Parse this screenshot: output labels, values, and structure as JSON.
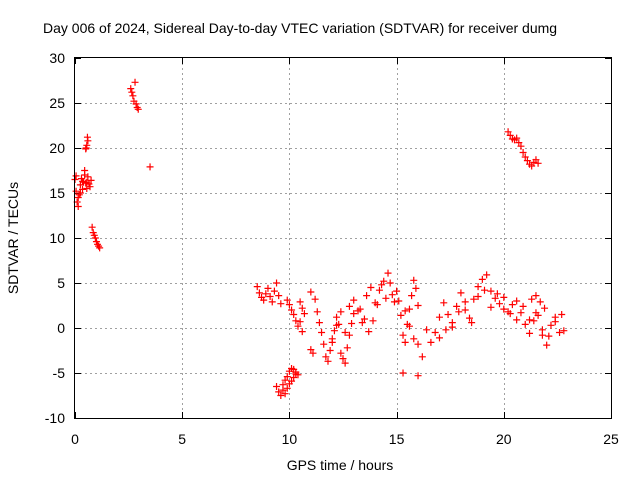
{
  "chart_data": {
    "type": "scatter",
    "title": "Day 006 of 2024, Sidereal Day-to-day VTEC variation (SDTVAR) for receiver dumg",
    "xlabel": "GPS time / hours",
    "ylabel": "SDTVAR / TECUs",
    "xlim": [
      0,
      25
    ],
    "ylim": [
      -10,
      30
    ],
    "xticks": [
      0,
      5,
      10,
      15,
      20,
      25
    ],
    "yticks": [
      -10,
      -5,
      0,
      5,
      10,
      15,
      20,
      25,
      30
    ],
    "xtick_labels": [
      "0",
      "5",
      "10",
      "15",
      "20",
      "25"
    ],
    "ytick_labels": [
      "-10",
      "-5",
      "0",
      "5",
      "10",
      "15",
      "20",
      "25",
      "30"
    ],
    "grid": true,
    "marker": "+",
    "color": "#ff0000",
    "series": [
      {
        "name": "SDTVAR",
        "x": [
          0.0,
          0.05,
          0.1,
          0.15,
          0.2,
          0.25,
          0.3,
          0.35,
          0.4,
          0.45,
          0.5,
          0.55,
          0.6,
          0.65,
          0.7,
          0.75,
          0.05,
          0.15,
          0.25,
          0.35,
          0.45,
          0.55,
          0.5,
          0.55,
          0.6,
          0.52,
          0.58,
          0.8,
          0.85,
          0.9,
          0.95,
          1.0,
          1.05,
          1.1,
          1.15,
          2.6,
          2.65,
          2.7,
          2.75,
          2.8,
          2.85,
          2.9,
          2.95,
          3.5,
          8.5,
          8.6,
          8.7,
          8.8,
          8.9,
          9.0,
          9.1,
          9.2,
          9.3,
          9.4,
          9.5,
          9.6,
          9.4,
          9.5,
          9.6,
          9.7,
          9.8,
          9.9,
          10.0,
          10.1,
          10.2,
          10.3,
          9.7,
          9.8,
          9.9,
          10.0,
          10.1,
          10.2,
          10.3,
          10.4,
          9.9,
          10.0,
          10.1,
          10.2,
          10.3,
          10.4,
          10.5,
          10.6,
          10.5,
          10.6,
          10.7,
          11.0,
          11.1,
          11.0,
          11.2,
          11.3,
          11.4,
          11.5,
          11.6,
          11.7,
          11.8,
          11.9,
          12.0,
          12.1,
          12.2,
          12.3,
          12.4,
          12.5,
          12.6,
          12.7,
          12.8,
          12.9,
          13.0,
          12.0,
          12.2,
          12.4,
          12.6,
          12.8,
          13.0,
          13.2,
          13.4,
          13.6,
          13.8,
          14.0,
          14.2,
          14.4,
          14.6,
          14.8,
          13.3,
          13.5,
          13.7,
          13.9,
          14.1,
          14.3,
          14.5,
          14.7,
          14.9,
          15.0,
          15.1,
          15.2,
          15.3,
          15.4,
          15.5,
          15.6,
          15.7,
          15.8,
          15.9,
          16.0,
          15.4,
          15.6,
          15.8,
          16.0,
          16.2,
          16.4,
          16.6,
          16.8,
          17.0,
          17.2,
          17.4,
          17.6,
          17.8,
          18.0,
          18.2,
          18.4,
          18.6,
          18.8,
          19.0,
          19.2,
          19.4,
          19.6,
          19.8,
          20.0,
          20.2,
          20.4,
          20.6,
          20.8,
          21.0,
          21.2,
          21.4,
          21.6,
          21.8,
          22.0,
          22.2,
          22.4,
          22.6,
          22.8,
          17.0,
          17.3,
          17.6,
          17.9,
          18.2,
          18.5,
          18.8,
          19.1,
          19.4,
          19.7,
          20.0,
          20.3,
          20.6,
          20.9,
          21.2,
          21.5,
          21.8,
          22.1,
          22.4,
          22.7,
          21.3,
          21.5,
          21.7,
          21.9,
          15.3,
          16.0,
          20.2,
          20.3,
          20.4,
          20.5,
          20.6,
          20.7,
          20.8,
          20.9,
          21.0,
          21.1,
          21.2,
          21.3,
          21.4,
          21.5,
          21.6
        ],
        "y": [
          16.5,
          15.2,
          14.0,
          13.5,
          14.8,
          15.9,
          16.6,
          15.4,
          16.2,
          17.0,
          16.1,
          15.5,
          16.8,
          16.0,
          15.7,
          16.4,
          16.9,
          14.5,
          15.0,
          16.3,
          17.5,
          16.2,
          19.9,
          20.3,
          20.8,
          20.0,
          21.2,
          11.2,
          10.6,
          10.3,
          10.0,
          9.6,
          9.3,
          9.1,
          8.9,
          26.6,
          26.2,
          25.8,
          25.2,
          27.3,
          24.9,
          24.5,
          24.3,
          17.9,
          4.6,
          3.9,
          3.4,
          3.1,
          3.8,
          4.4,
          3.5,
          2.9,
          4.1,
          5.0,
          3.6,
          2.7,
          -6.5,
          -7.1,
          -7.5,
          -6.9,
          -7.3,
          -6.7,
          -6.2,
          -5.9,
          -5.5,
          -5.1,
          -6.3,
          -5.8,
          -5.4,
          -4.8,
          -4.5,
          -4.6,
          -4.9,
          -5.2,
          3.1,
          2.6,
          2.0,
          1.5,
          0.8,
          0.2,
          0.7,
          -0.4,
          2.9,
          2.2,
          1.6,
          -2.4,
          -2.8,
          4.0,
          3.2,
          1.8,
          0.6,
          -0.5,
          -1.8,
          -3.2,
          -3.7,
          -2.5,
          -1.6,
          -0.3,
          1.2,
          0.4,
          -2.8,
          -3.4,
          -3.9,
          -2.2,
          -0.8,
          0.5,
          1.6,
          -1.2,
          0.3,
          1.8,
          -0.5,
          2.4,
          3.1,
          1.9,
          0.6,
          3.6,
          4.5,
          2.8,
          4.2,
          5.2,
          6.1,
          3.7,
          2.1,
          1.0,
          -0.4,
          0.8,
          2.6,
          4.8,
          3.3,
          5.0,
          2.9,
          4.1,
          3.0,
          1.4,
          -0.8,
          -1.6,
          0.4,
          2.1,
          3.6,
          5.3,
          4.4,
          2.5,
          1.9,
          0.2,
          -1.2,
          -1.8,
          -3.2,
          -0.2,
          -1.6,
          -0.5,
          1.2,
          2.8,
          1.5,
          0.6,
          2.4,
          3.9,
          2.0,
          1.1,
          3.2,
          4.6,
          5.4,
          5.9,
          4.1,
          3.3,
          2.7,
          3.4,
          1.8,
          2.6,
          0.9,
          1.7,
          0.4,
          -0.6,
          0.8,
          1.4,
          -0.8,
          -1.9,
          0.3,
          1.2,
          -0.5,
          -0.3,
          -1.1,
          -0.2,
          0.1,
          1.8,
          2.9,
          0.6,
          3.5,
          4.2,
          2.3,
          3.8,
          2.1,
          1.6,
          3.0,
          2.4,
          0.9,
          1.7,
          -0.2,
          -0.9,
          0.7,
          1.5,
          3.2,
          3.6,
          2.9,
          2.2,
          -5.0,
          -5.3,
          21.8,
          21.4,
          21.0,
          20.9,
          21.1,
          20.6,
          20.2,
          19.5,
          19.0,
          18.6,
          18.2,
          18.0,
          18.4,
          18.7,
          18.3
        ]
      }
    ]
  }
}
